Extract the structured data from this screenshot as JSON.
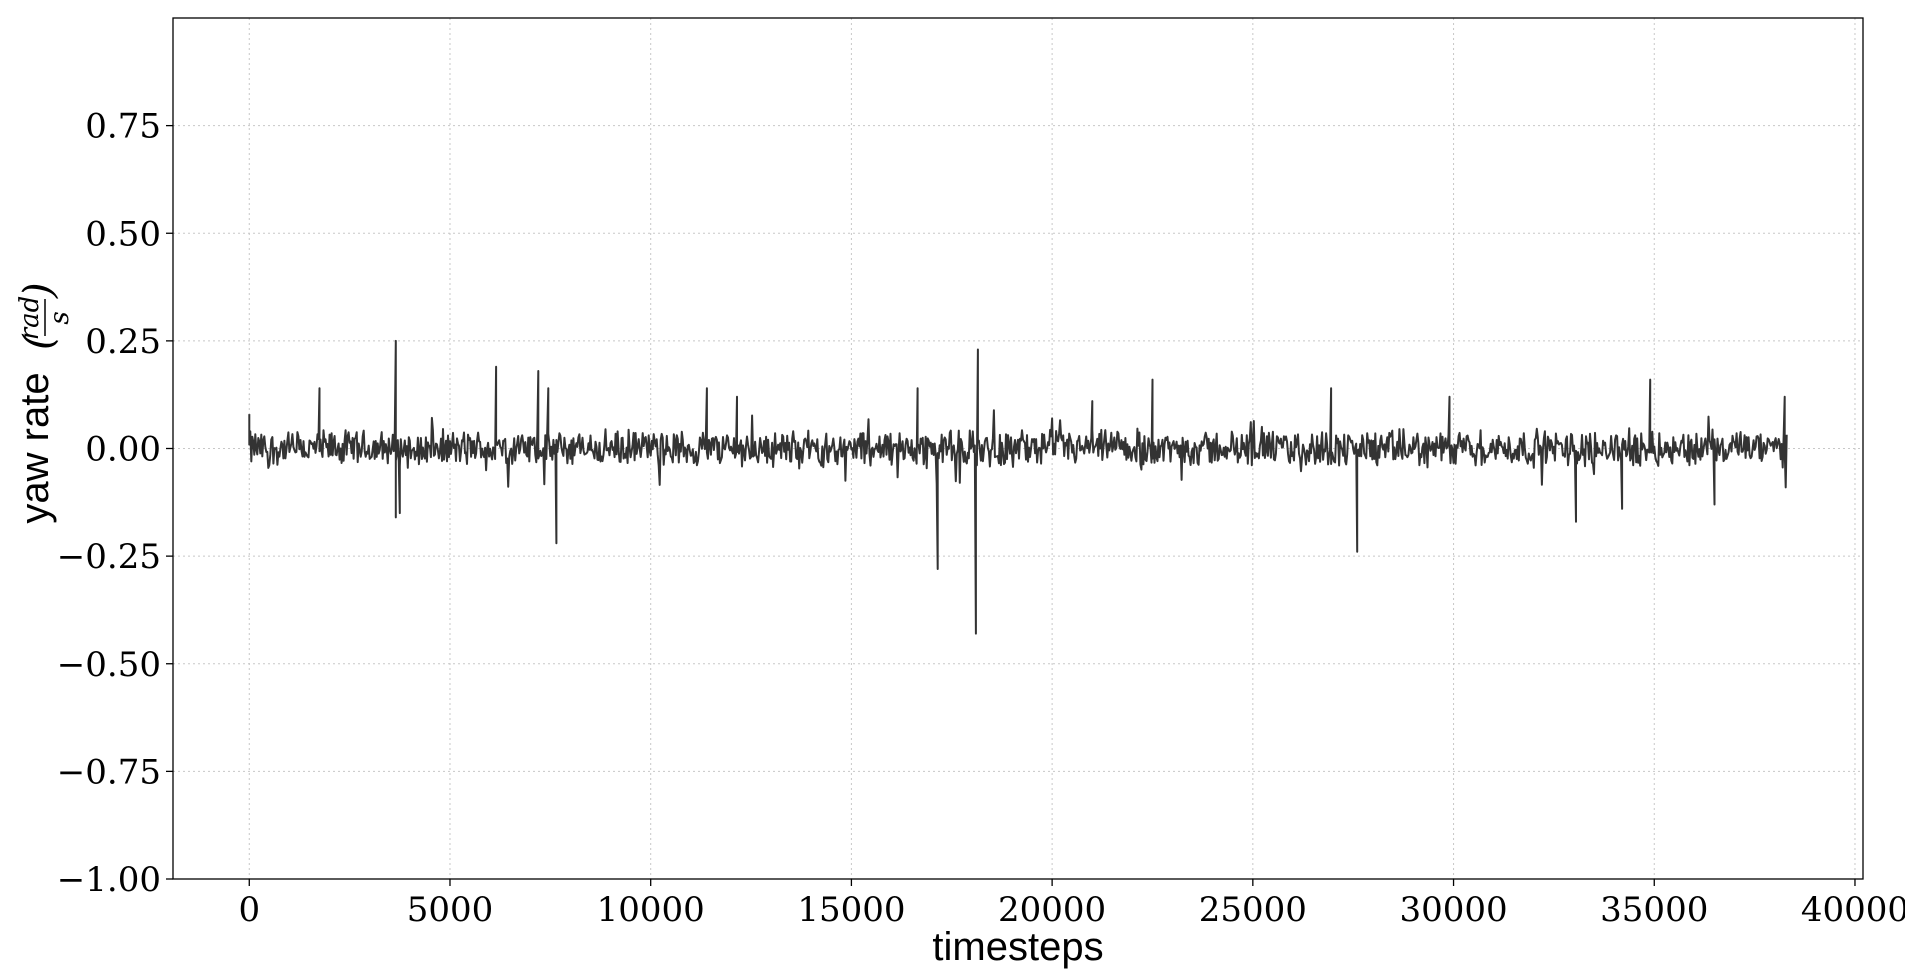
{
  "chart_data": {
    "type": "line",
    "title": "",
    "xlabel": "timesteps",
    "ylabel": "yaw rate",
    "ylabel_unit_num": "rad",
    "ylabel_unit_den": "s",
    "xlim": [
      -1900,
      40200
    ],
    "ylim": [
      -1.0,
      1.0
    ],
    "xticks": [
      0,
      5000,
      10000,
      15000,
      20000,
      25000,
      30000,
      35000,
      40000
    ],
    "xtick_labels": [
      "0",
      "5000",
      "10000",
      "15000",
      "20000",
      "25000",
      "30000",
      "35000",
      "40000"
    ],
    "yticks": [
      -1.0,
      -0.75,
      -0.5,
      -0.25,
      0.0,
      0.25,
      0.5,
      0.75
    ],
    "ytick_labels": [
      "−1.00",
      "−0.75",
      "−0.50",
      "−0.25",
      "0.00",
      "0.25",
      "0.50",
      "0.75"
    ],
    "grid": true,
    "legend": "none",
    "series": [
      {
        "color": "#333333",
        "x_range": [
          0,
          38300
        ],
        "noise_amplitude": 0.035,
        "spikes": [
          {
            "x": 0,
            "y": 0.08
          },
          {
            "x": 1750,
            "y": 0.14
          },
          {
            "x": 3650,
            "y": 0.25
          },
          {
            "x": 3650,
            "y": -0.16
          },
          {
            "x": 3750,
            "y": -0.15
          },
          {
            "x": 6150,
            "y": 0.19
          },
          {
            "x": 7200,
            "y": 0.18
          },
          {
            "x": 7450,
            "y": 0.14
          },
          {
            "x": 7650,
            "y": -0.22
          },
          {
            "x": 11400,
            "y": 0.14
          },
          {
            "x": 12150,
            "y": 0.12
          },
          {
            "x": 16650,
            "y": 0.14
          },
          {
            "x": 17150,
            "y": -0.28
          },
          {
            "x": 18100,
            "y": -0.43
          },
          {
            "x": 18150,
            "y": 0.23
          },
          {
            "x": 21000,
            "y": 0.11
          },
          {
            "x": 22500,
            "y": 0.16
          },
          {
            "x": 26950,
            "y": 0.14
          },
          {
            "x": 27600,
            "y": -0.24
          },
          {
            "x": 29900,
            "y": 0.12
          },
          {
            "x": 33050,
            "y": -0.17
          },
          {
            "x": 34200,
            "y": -0.14
          },
          {
            "x": 34900,
            "y": 0.16
          },
          {
            "x": 36500,
            "y": -0.13
          },
          {
            "x": 38250,
            "y": 0.12
          }
        ]
      }
    ]
  }
}
